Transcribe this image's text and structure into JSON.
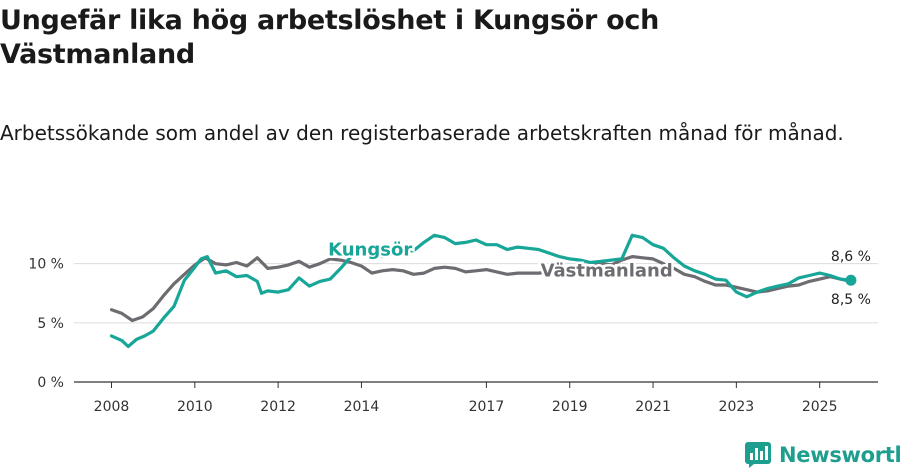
{
  "title": "Ungefär lika hög arbetslöshet i Kungsör och Västmanland",
  "subtitle": "Arbetssökande som andel av den registerbaserade arbetskraften månad för månad.",
  "brand": {
    "name": "Newsworthy",
    "icon": "bar-chart-logo-icon",
    "color": "#1e9e8e"
  },
  "chart_data": {
    "type": "line",
    "xlim": [
      2007.1,
      2026.4
    ],
    "ylim": [
      0,
      12
    ],
    "grid": true,
    "x_ticks": [
      {
        "value": 2008,
        "label": "2008"
      },
      {
        "value": 2010,
        "label": "2010"
      },
      {
        "value": 2012,
        "label": "2012"
      },
      {
        "value": 2014,
        "label": "2014"
      },
      {
        "value": 2017,
        "label": "2017"
      },
      {
        "value": 2019,
        "label": "2019"
      },
      {
        "value": 2021,
        "label": "2021"
      },
      {
        "value": 2023,
        "label": "2023"
      },
      {
        "value": 2025,
        "label": "2025"
      }
    ],
    "y_ticks": [
      {
        "value": 0,
        "label": "0 %"
      },
      {
        "value": 5,
        "label": "5 %"
      },
      {
        "value": 10,
        "label": "10 %"
      }
    ],
    "series": [
      {
        "name": "Västmanland",
        "color": "#6e6c71",
        "end_label": "8,5 %",
        "points": [
          [
            2008.0,
            6.1
          ],
          [
            2008.25,
            5.8
          ],
          [
            2008.5,
            5.2
          ],
          [
            2008.75,
            5.5
          ],
          [
            2009.0,
            6.2
          ],
          [
            2009.25,
            7.3
          ],
          [
            2009.5,
            8.3
          ],
          [
            2009.75,
            9.1
          ],
          [
            2010.0,
            9.9
          ],
          [
            2010.25,
            10.5
          ],
          [
            2010.5,
            10.0
          ],
          [
            2010.75,
            9.9
          ],
          [
            2011.0,
            10.1
          ],
          [
            2011.25,
            9.8
          ],
          [
            2011.5,
            10.5
          ],
          [
            2011.75,
            9.6
          ],
          [
            2012.0,
            9.7
          ],
          [
            2012.25,
            9.9
          ],
          [
            2012.5,
            10.2
          ],
          [
            2012.75,
            9.7
          ],
          [
            2013.0,
            10.0
          ],
          [
            2013.25,
            10.4
          ],
          [
            2013.5,
            10.3
          ],
          [
            2013.75,
            10.1
          ],
          [
            2014.0,
            9.8
          ],
          [
            2014.25,
            9.2
          ],
          [
            2014.5,
            9.4
          ],
          [
            2014.75,
            9.5
          ],
          [
            2015.0,
            9.4
          ],
          [
            2015.25,
            9.1
          ],
          [
            2015.5,
            9.2
          ],
          [
            2015.75,
            9.6
          ],
          [
            2016.0,
            9.7
          ],
          [
            2016.25,
            9.6
          ],
          [
            2016.5,
            9.3
          ],
          [
            2016.75,
            9.4
          ],
          [
            2017.0,
            9.5
          ],
          [
            2017.25,
            9.3
          ],
          [
            2017.5,
            9.1
          ],
          [
            2017.75,
            9.2
          ],
          [
            2018.0,
            9.2
          ],
          [
            2018.25,
            9.2
          ],
          [
            2018.5,
            9.3
          ],
          [
            2018.75,
            9.3
          ],
          [
            2019.0,
            9.5
          ],
          [
            2019.25,
            9.7
          ],
          [
            2019.5,
            9.9
          ],
          [
            2019.75,
            10.0
          ],
          [
            2020.0,
            9.9
          ],
          [
            2020.25,
            10.3
          ],
          [
            2020.5,
            10.6
          ],
          [
            2020.75,
            10.5
          ],
          [
            2021.0,
            10.4
          ],
          [
            2021.25,
            10.0
          ],
          [
            2021.5,
            9.6
          ],
          [
            2021.75,
            9.1
          ],
          [
            2022.0,
            8.9
          ],
          [
            2022.25,
            8.5
          ],
          [
            2022.5,
            8.2
          ],
          [
            2022.75,
            8.2
          ],
          [
            2023.0,
            8.0
          ],
          [
            2023.25,
            7.8
          ],
          [
            2023.5,
            7.6
          ],
          [
            2023.75,
            7.7
          ],
          [
            2024.0,
            7.9
          ],
          [
            2024.25,
            8.1
          ],
          [
            2024.5,
            8.2
          ],
          [
            2024.75,
            8.5
          ],
          [
            2025.0,
            8.7
          ],
          [
            2025.25,
            8.9
          ],
          [
            2025.5,
            8.7
          ],
          [
            2025.75,
            8.5
          ]
        ]
      },
      {
        "name": "Kungsör",
        "color": "#17a697",
        "end_label": "8,6 %",
        "points": [
          [
            2008.0,
            3.9
          ],
          [
            2008.25,
            3.5
          ],
          [
            2008.4,
            3.0
          ],
          [
            2008.6,
            3.6
          ],
          [
            2008.8,
            3.9
          ],
          [
            2009.0,
            4.3
          ],
          [
            2009.25,
            5.4
          ],
          [
            2009.5,
            6.4
          ],
          [
            2009.75,
            8.6
          ],
          [
            2010.0,
            9.7
          ],
          [
            2010.15,
            10.4
          ],
          [
            2010.3,
            10.6
          ],
          [
            2010.5,
            9.2
          ],
          [
            2010.75,
            9.4
          ],
          [
            2011.0,
            8.9
          ],
          [
            2011.25,
            9.0
          ],
          [
            2011.5,
            8.5
          ],
          [
            2011.6,
            7.5
          ],
          [
            2011.75,
            7.7
          ],
          [
            2012.0,
            7.6
          ],
          [
            2012.25,
            7.8
          ],
          [
            2012.5,
            8.8
          ],
          [
            2012.75,
            8.1
          ],
          [
            2013.0,
            8.5
          ],
          [
            2013.25,
            8.7
          ],
          [
            2013.5,
            9.6
          ],
          [
            2013.75,
            10.6
          ],
          [
            2014.0,
            10.7
          ],
          [
            2014.25,
            11.0
          ],
          [
            2014.5,
            10.6
          ],
          [
            2014.75,
            10.9
          ],
          [
            2015.0,
            11.0
          ],
          [
            2015.25,
            11.1
          ],
          [
            2015.5,
            11.8
          ],
          [
            2015.75,
            12.4
          ],
          [
            2016.0,
            12.2
          ],
          [
            2016.25,
            11.7
          ],
          [
            2016.5,
            11.8
          ],
          [
            2016.75,
            12.0
          ],
          [
            2017.0,
            11.6
          ],
          [
            2017.25,
            11.6
          ],
          [
            2017.5,
            11.2
          ],
          [
            2017.75,
            11.4
          ],
          [
            2018.0,
            11.3
          ],
          [
            2018.25,
            11.2
          ],
          [
            2018.5,
            10.9
          ],
          [
            2018.75,
            10.6
          ],
          [
            2019.0,
            10.4
          ],
          [
            2019.25,
            10.3
          ],
          [
            2019.5,
            10.1
          ],
          [
            2019.75,
            10.2
          ],
          [
            2020.0,
            10.3
          ],
          [
            2020.25,
            10.4
          ],
          [
            2020.5,
            12.4
          ],
          [
            2020.75,
            12.2
          ],
          [
            2021.0,
            11.6
          ],
          [
            2021.25,
            11.3
          ],
          [
            2021.5,
            10.5
          ],
          [
            2021.75,
            9.8
          ],
          [
            2022.0,
            9.4
          ],
          [
            2022.25,
            9.1
          ],
          [
            2022.5,
            8.7
          ],
          [
            2022.75,
            8.6
          ],
          [
            2023.0,
            7.6
          ],
          [
            2023.25,
            7.2
          ],
          [
            2023.5,
            7.6
          ],
          [
            2023.75,
            7.9
          ],
          [
            2024.0,
            8.1
          ],
          [
            2024.25,
            8.3
          ],
          [
            2024.5,
            8.8
          ],
          [
            2024.75,
            9.0
          ],
          [
            2025.0,
            9.2
          ],
          [
            2025.25,
            9.0
          ],
          [
            2025.5,
            8.7
          ],
          [
            2025.75,
            8.6
          ]
        ]
      }
    ],
    "annotations": [
      {
        "series": "Kungsör",
        "text": "Kungsör",
        "at_x": 2013.2,
        "at_y": 10.7
      },
      {
        "series": "Västmanland",
        "text": "Västmanland",
        "at_x": 2018.3,
        "at_y": 8.9
      }
    ]
  }
}
